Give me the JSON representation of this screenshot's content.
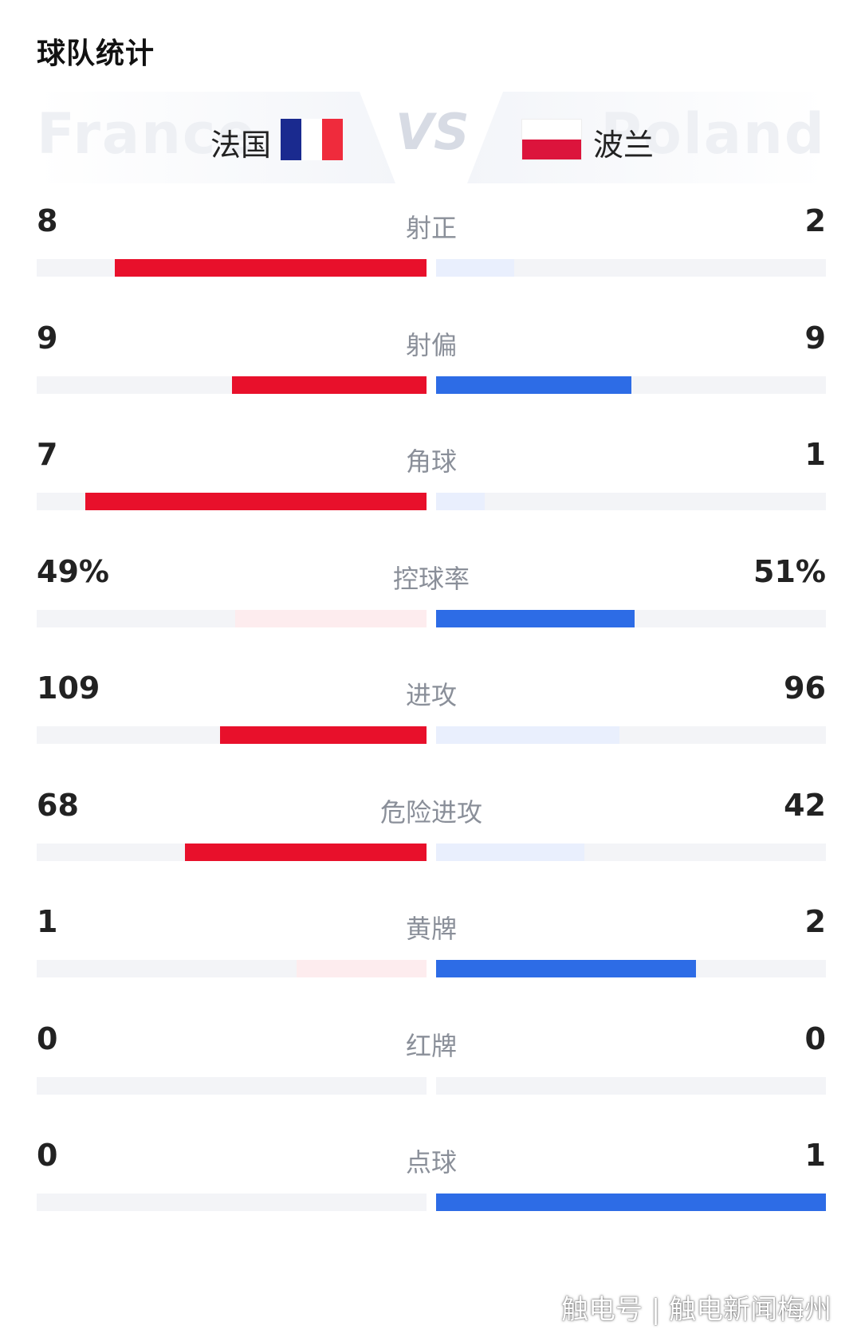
{
  "title": "球队统计",
  "home": {
    "name": "法国",
    "ghost": "France",
    "color": "#e8102b",
    "color_low": "#fdecee",
    "flag": [
      "#1a2a8f",
      "#ffffff",
      "#ef2b3c"
    ]
  },
  "away": {
    "name": "波兰",
    "ghost": "Poland",
    "color": "#2d6ce6",
    "color_low": "#e9effd"
  },
  "vs": "VS",
  "stats": [
    {
      "label": "射正",
      "home": "8",
      "away": "2",
      "home_frac": 0.8,
      "away_frac": 0.2
    },
    {
      "label": "射偏",
      "home": "9",
      "away": "9",
      "home_frac": 0.5,
      "away_frac": 0.5
    },
    {
      "label": "角球",
      "home": "7",
      "away": "1",
      "home_frac": 0.875,
      "away_frac": 0.125
    },
    {
      "label": "控球率",
      "home": "49%",
      "away": "51%",
      "home_frac": 0.49,
      "away_frac": 0.51
    },
    {
      "label": "进攻",
      "home": "109",
      "away": "96",
      "home_frac": 0.53,
      "away_frac": 0.47
    },
    {
      "label": "危险进攻",
      "home": "68",
      "away": "42",
      "home_frac": 0.62,
      "away_frac": 0.38
    },
    {
      "label": "黄牌",
      "home": "1",
      "away": "2",
      "home_frac": 0.333,
      "away_frac": 0.667
    },
    {
      "label": "红牌",
      "home": "0",
      "away": "0",
      "home_frac": 0,
      "away_frac": 0
    },
    {
      "label": "点球",
      "home": "0",
      "away": "1",
      "home_frac": 0,
      "away_frac": 1.0
    }
  ],
  "watermark": "触电号 | 触电新闻梅州"
}
